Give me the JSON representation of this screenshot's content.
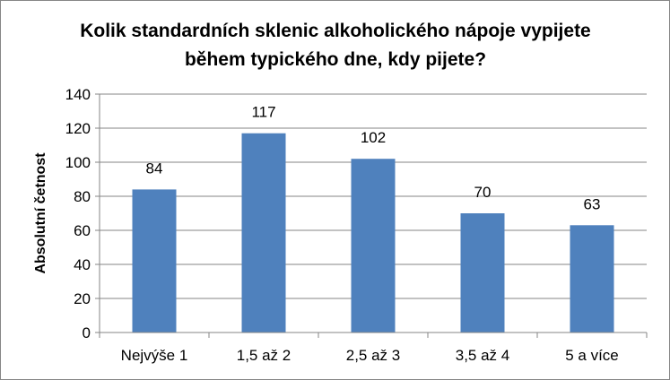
{
  "chart_data": {
    "type": "bar",
    "title_lines": [
      "Kolik standardních sklenic alkoholického  nápoje vypijete",
      "během typického dne, kdy pijete?"
    ],
    "ylabel": "Absolutní četnost",
    "xlabel": "",
    "categories": [
      "Nejvýše 1",
      "1,5 až 2",
      "2,5 až 3",
      "3,5 až 4",
      "5 a více"
    ],
    "values": [
      84,
      117,
      102,
      70,
      63
    ],
    "data_labels": [
      "84",
      "117",
      "102",
      "70",
      "63"
    ],
    "ylim": [
      0,
      140
    ],
    "y_ticks": [
      "0",
      "20",
      "40",
      "60",
      "80",
      "100",
      "120",
      "140"
    ],
    "grid": true,
    "legend": "none",
    "bar_color": "#4f81bd",
    "grid_color": "#868686"
  }
}
